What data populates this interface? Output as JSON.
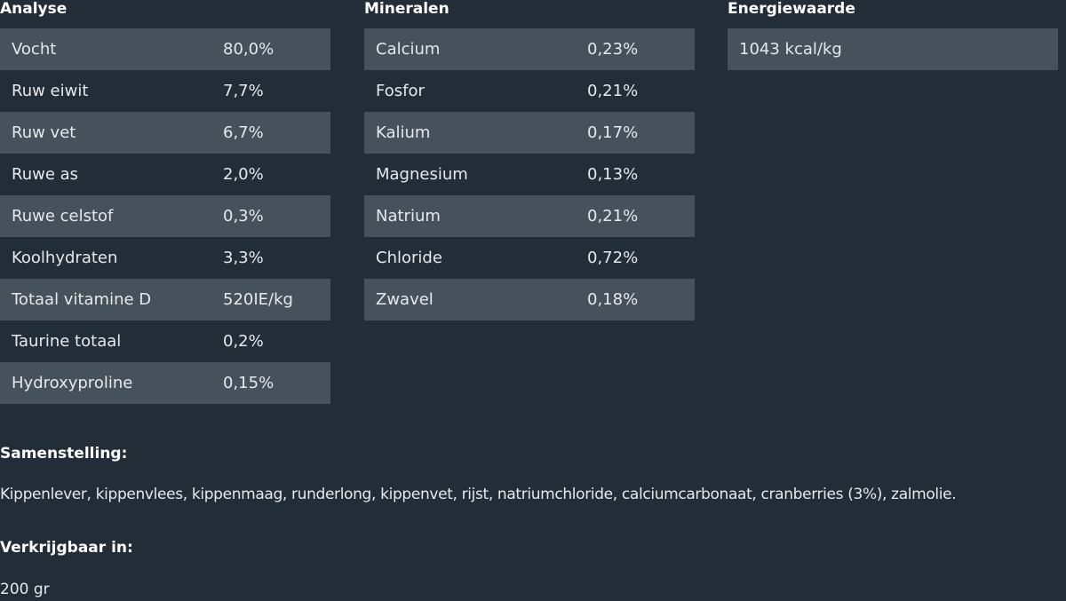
{
  "analyse": {
    "title": "Analyse",
    "rows": [
      [
        "Vocht",
        "80,0%"
      ],
      [
        "Ruw eiwit",
        "7,7%"
      ],
      [
        "Ruw vet",
        "6,7%"
      ],
      [
        "Ruwe as",
        "2,0%"
      ],
      [
        "Ruwe celstof",
        "0,3%"
      ],
      [
        "Koolhydraten",
        "3,3%"
      ],
      [
        "Totaal vitamine D",
        "520IE/kg"
      ],
      [
        "Taurine totaal",
        "0,2%"
      ],
      [
        "Hydroxyproline",
        "0,15%"
      ]
    ]
  },
  "mineralen": {
    "title": "Mineralen",
    "rows": [
      [
        "Calcium",
        "0,23%"
      ],
      [
        "Fosfor",
        "0,21%"
      ],
      [
        "Kalium",
        "0,17%"
      ],
      [
        "Magnesium",
        "0,13%"
      ],
      [
        "Natrium",
        "0,21%"
      ],
      [
        "Chloride",
        "0,72%"
      ],
      [
        "Zwavel",
        "0,18%"
      ]
    ]
  },
  "energie": {
    "title": "Energiewaarde",
    "rows": [
      [
        "1043 kcal/kg",
        ""
      ]
    ]
  },
  "samenstelling": {
    "label": "Samenstelling:",
    "text": "Kippenlever, kippenvlees, kippenmaag, runderlong, kippenvet, rijst, natriumchloride, calciumcarbonaat, cranberries (3%), zalmolie."
  },
  "verkrijgbaar": {
    "label": "Verkrijgbaar in:",
    "text": "200 gr"
  }
}
